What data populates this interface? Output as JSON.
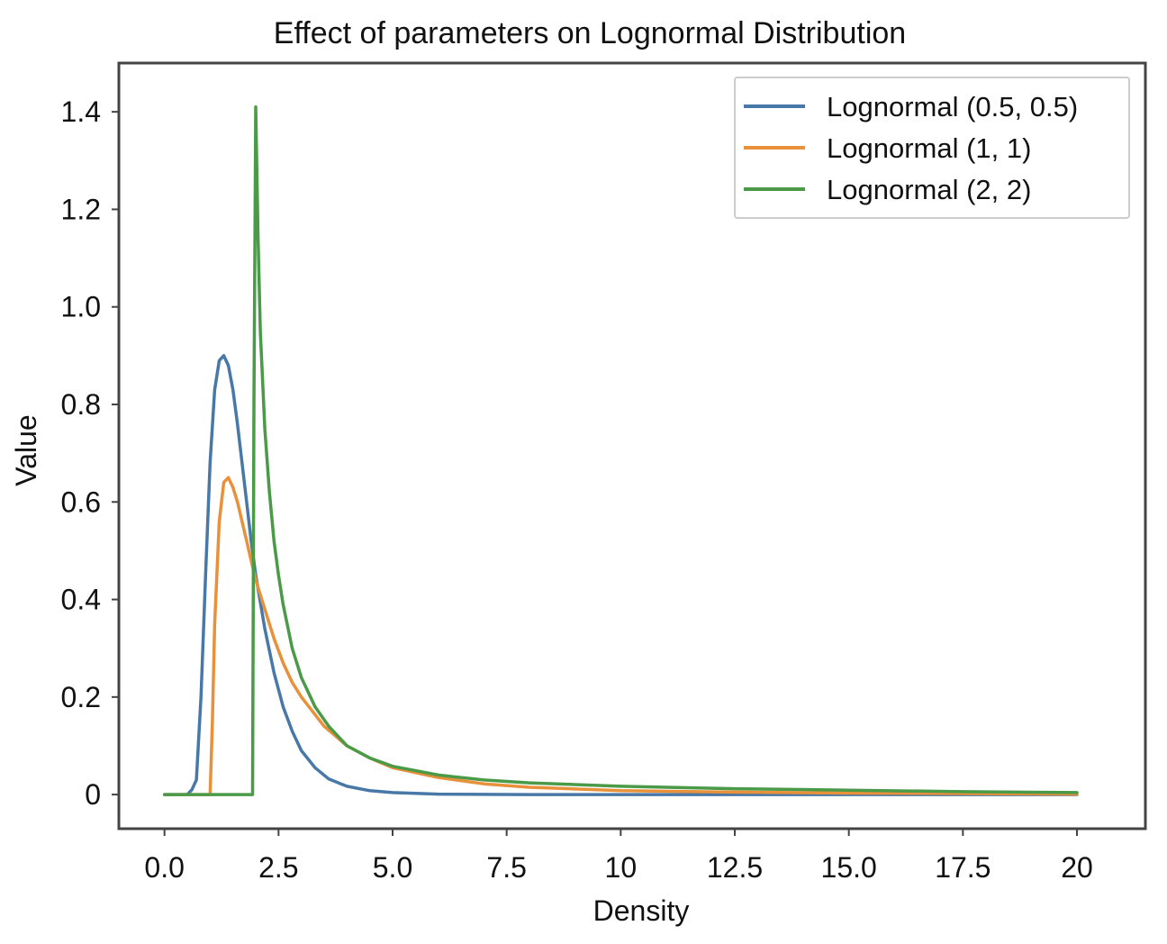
{
  "chart_data": {
    "type": "line",
    "title": "Effect of parameters on Lognormal Distribution",
    "xlabel": "Density",
    "ylabel": "Value",
    "xlim": [
      -1,
      21.5
    ],
    "ylim": [
      -0.07,
      1.5
    ],
    "grid": false,
    "legend_position": "top-right",
    "x_ticks": [
      {
        "value": 0,
        "label": "0.0"
      },
      {
        "value": 2.5,
        "label": "2.5"
      },
      {
        "value": 5,
        "label": "5.0"
      },
      {
        "value": 7.5,
        "label": "7.5"
      },
      {
        "value": 10,
        "label": "10"
      },
      {
        "value": 12.5,
        "label": "12.5"
      },
      {
        "value": 15,
        "label": "15.0"
      },
      {
        "value": 17.5,
        "label": "17.5"
      },
      {
        "value": 20,
        "label": "20"
      }
    ],
    "y_ticks": [
      {
        "value": 0,
        "label": "0"
      },
      {
        "value": 0.2,
        "label": "0.2"
      },
      {
        "value": 0.4,
        "label": "0.4"
      },
      {
        "value": 0.6,
        "label": "0.6"
      },
      {
        "value": 0.8,
        "label": "0.8"
      },
      {
        "value": 1.0,
        "label": "1.0"
      },
      {
        "value": 1.2,
        "label": "1.2"
      },
      {
        "value": 1.4,
        "label": "1.4"
      }
    ],
    "series": [
      {
        "name": "Lognormal (0.5, 0.5)",
        "color": "#4878a8",
        "x": [
          0,
          0.5,
          0.6,
          0.7,
          0.8,
          0.9,
          1.0,
          1.1,
          1.2,
          1.3,
          1.4,
          1.5,
          1.6,
          1.7,
          1.8,
          1.9,
          2.0,
          2.2,
          2.4,
          2.6,
          2.8,
          3.0,
          3.3,
          3.6,
          4.0,
          4.5,
          5.0,
          6.0,
          8.0,
          10,
          12.5,
          15,
          17.5,
          20
        ],
        "y": [
          0,
          0,
          0.01,
          0.03,
          0.2,
          0.45,
          0.68,
          0.83,
          0.89,
          0.9,
          0.88,
          0.83,
          0.76,
          0.68,
          0.6,
          0.52,
          0.45,
          0.34,
          0.25,
          0.18,
          0.13,
          0.09,
          0.055,
          0.032,
          0.017,
          0.008,
          0.004,
          0.001,
          0,
          0,
          0,
          0,
          0,
          0
        ]
      },
      {
        "name": "Lognormal (1, 1)",
        "color": "#e8913a",
        "x": [
          0,
          1.0,
          1.05,
          1.1,
          1.2,
          1.3,
          1.4,
          1.5,
          1.6,
          1.7,
          1.8,
          1.9,
          2.0,
          2.2,
          2.4,
          2.6,
          2.8,
          3.0,
          3.5,
          4.0,
          4.5,
          5.0,
          6.0,
          7.0,
          8.0,
          10,
          12.5,
          15,
          17.5,
          20
        ],
        "y": [
          0,
          0,
          0.15,
          0.35,
          0.56,
          0.64,
          0.65,
          0.63,
          0.6,
          0.56,
          0.52,
          0.48,
          0.44,
          0.38,
          0.32,
          0.27,
          0.23,
          0.2,
          0.14,
          0.1,
          0.075,
          0.055,
          0.035,
          0.022,
          0.015,
          0.008,
          0.005,
          0.003,
          0.002,
          0.001
        ]
      },
      {
        "name": "Lognormal (2, 2)",
        "color": "#4a9a48",
        "x": [
          0,
          1.93,
          1.96,
          2.0,
          2.05,
          2.1,
          2.2,
          2.3,
          2.4,
          2.5,
          2.6,
          2.8,
          3.0,
          3.3,
          3.6,
          4.0,
          4.5,
          5.0,
          6.0,
          7.0,
          8.0,
          10,
          12.5,
          15,
          17.5,
          20
        ],
        "y": [
          0,
          0,
          0.8,
          1.41,
          1.15,
          0.95,
          0.75,
          0.62,
          0.52,
          0.45,
          0.39,
          0.3,
          0.24,
          0.18,
          0.14,
          0.1,
          0.075,
          0.058,
          0.04,
          0.03,
          0.024,
          0.017,
          0.012,
          0.009,
          0.006,
          0.004
        ]
      }
    ]
  }
}
